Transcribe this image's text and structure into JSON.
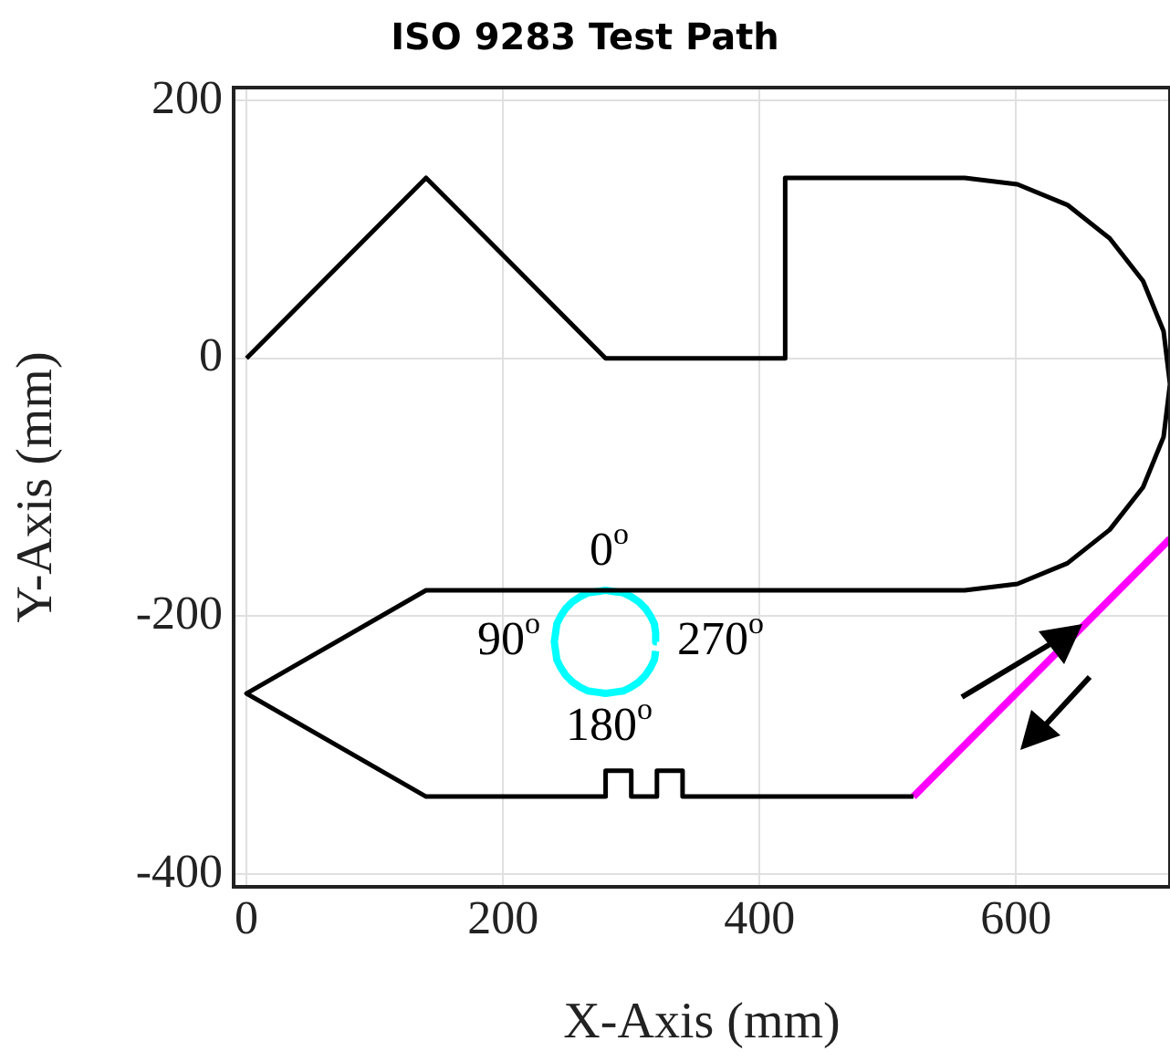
{
  "chart_data": {
    "type": "line",
    "title": "ISO 9283 Test Path",
    "xlabel": "X-Axis (mm)",
    "ylabel": "Y-Axis (mm)",
    "xlim": [
      -10,
      720
    ],
    "ylim": [
      -410,
      210
    ],
    "xticks": [
      0,
      200,
      400,
      600
    ],
    "yticks": [
      -400,
      -200,
      0,
      200
    ],
    "grid": true,
    "legend": false,
    "marker": "none",
    "series": [
      {
        "color": "#000000",
        "x": [
          0,
          140,
          280,
          420,
          420,
          560,
          601,
          640,
          673,
          699,
          715,
          720,
          715,
          699,
          673,
          640,
          601,
          560,
          140,
          0,
          140,
          280,
          280,
          300,
          300,
          320,
          320,
          340,
          340,
          520
        ],
        "values": [
          0,
          140,
          0,
          0,
          140,
          140,
          135,
          119,
          93,
          60,
          21,
          -20,
          -61,
          -100,
          -133,
          -159,
          -175,
          -180,
          -180,
          -260,
          -340,
          -340,
          -320,
          -320,
          -340,
          -340,
          -320,
          -320,
          -340,
          -340
        ]
      },
      {
        "color": "#00ffff",
        "x": [
          320,
          319,
          318,
          315,
          311,
          306,
          300,
          294,
          287,
          280,
          273,
          266,
          260,
          254,
          249,
          245,
          242,
          241,
          240,
          241,
          242,
          245,
          249,
          254,
          260,
          266,
          273,
          280,
          287,
          294,
          300,
          306,
          311,
          315,
          318,
          319
        ],
        "values": [
          -220,
          -213,
          -206,
          -200,
          -194,
          -189,
          -185,
          -182,
          -181,
          -180,
          -181,
          -182,
          -185,
          -189,
          -194,
          -200,
          -206,
          -213,
          -220,
          -227,
          -234,
          -240,
          -246,
          -251,
          -255,
          -258,
          -259,
          -260,
          -259,
          -258,
          -255,
          -251,
          -246,
          -240,
          -234,
          -227
        ]
      },
      {
        "color": "#ff00ff",
        "x": [
          520,
          720
        ],
        "values": [
          -340,
          -140
        ]
      }
    ],
    "annotations": [
      "0$^{o}$",
      "90$^{o}$",
      "270$^{o}$",
      "180$^{o}$"
    ]
  }
}
